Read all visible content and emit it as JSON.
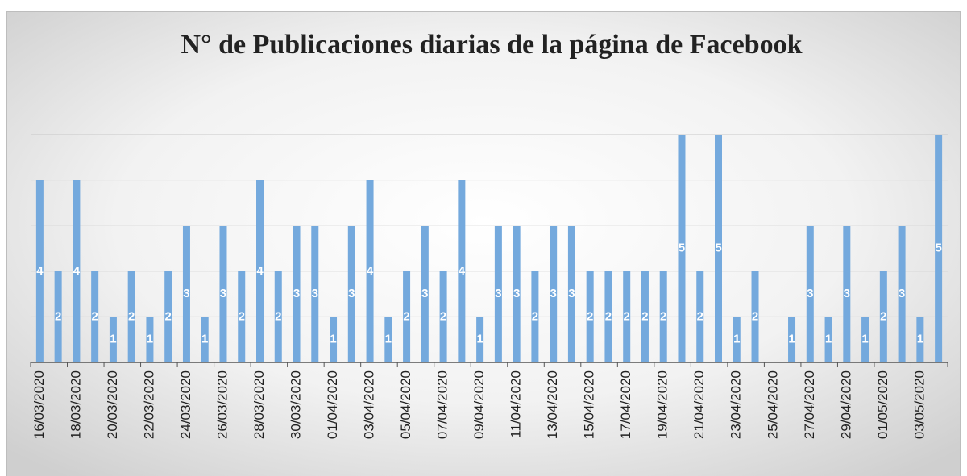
{
  "chart_data": {
    "type": "bar",
    "title": "N° de Publicaciones diarias de la página de Facebook",
    "categories": [
      "16/03/2020",
      null,
      "18/03/2020",
      null,
      "20/03/2020",
      null,
      "22/03/2020",
      null,
      "24/03/2020",
      null,
      "26/03/2020",
      null,
      "28/03/2020",
      null,
      "30/03/2020",
      null,
      "01/04/2020",
      null,
      "03/04/2020",
      null,
      "05/04/2020",
      null,
      "07/04/2020",
      null,
      "09/04/2020",
      null,
      "11/04/2020",
      null,
      "13/04/2020",
      null,
      "15/04/2020",
      null,
      "17/04/2020",
      null,
      "19/04/2020",
      null,
      "21/04/2020",
      null,
      "23/04/2020",
      null,
      "25/04/2020",
      null,
      "27/04/2020",
      null,
      "29/04/2020",
      null,
      "01/05/2020",
      null,
      "03/05/2020",
      null
    ],
    "values": [
      4,
      2,
      4,
      2,
      1,
      2,
      1,
      2,
      3,
      1,
      3,
      2,
      4,
      2,
      3,
      3,
      1,
      3,
      4,
      1,
      2,
      3,
      2,
      4,
      1,
      3,
      3,
      2,
      3,
      3,
      2,
      2,
      2,
      2,
      2,
      5,
      2,
      5,
      1,
      2,
      0,
      1,
      3,
      1,
      3,
      1,
      2,
      3,
      1,
      5
    ],
    "color": "#74a9dd",
    "ylim": [
      0,
      5
    ],
    "yticks": [
      0,
      1,
      2,
      3,
      4,
      5
    ],
    "grid": true
  }
}
